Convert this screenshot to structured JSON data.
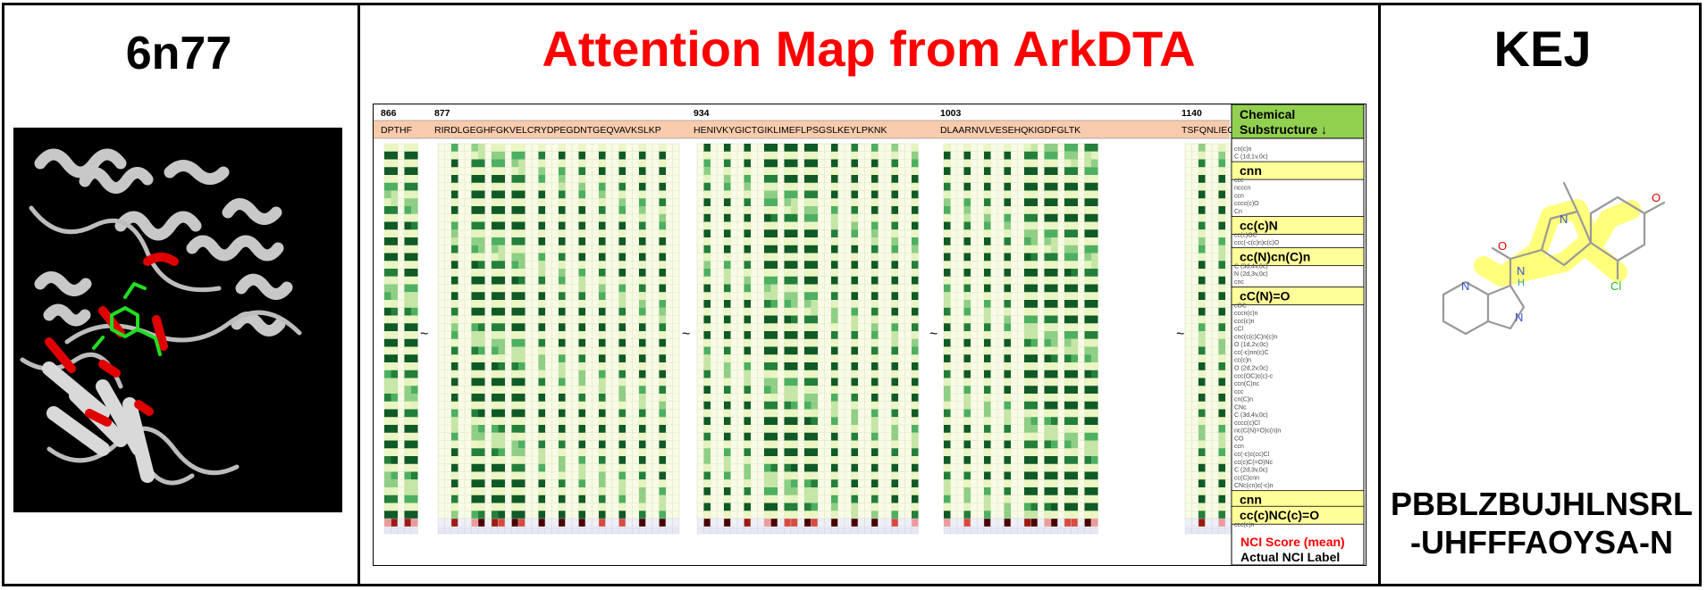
{
  "panels": {
    "protein": {
      "pdb_id": "6n77"
    },
    "main": {
      "title": "Attention Map from ArkDTA"
    },
    "ligand": {
      "ligand_id": "KEJ",
      "inchikey_line1": "PBBLZBUJHLNSRL",
      "inchikey_line2": "-UHFFFAOYSA-N"
    }
  },
  "attention_map": {
    "segments": [
      {
        "start": "866",
        "sequence": "DPTHF"
      },
      {
        "start": "877",
        "sequence": "RIRDLGEGHFGKVELCRYDPEGDNTGEQVAVKSLKP"
      },
      {
        "start": "934",
        "sequence": "HENIVKYGICTGIKLIMEFLPSGSLKEYLPKNK"
      },
      {
        "start": "1003",
        "sequence": "DLAARNVLVESEHQKIGDFGLTK"
      },
      {
        "start": "1140",
        "sequence": "TSFQNLIEGFEALLK"
      }
    ],
    "gap_symbol": "~",
    "header": {
      "line1": "Chemical",
      "line2": "Substructure ↓"
    },
    "substructures": [
      "cn(c)n",
      "C (1d,1v,0c)",
      "ccnn(c)c",
      "cnn",
      "ccc",
      "ncccn",
      "ccn",
      "cccc(c)O",
      "Cn",
      "N (1d,2v,0c)",
      "cc(c)N",
      "cc(c)OC",
      "ccc(-c(c)n)c(c)O",
      "cccc(c)Cl",
      "cc(N)cn(C)n",
      "C (3d,4v,0c)",
      "N (2d,3v,0c)",
      "cnc",
      "ccc(c)",
      "cC(N)=O",
      "cOC",
      "cccn(c)n",
      "ccc(c)n",
      "cCl",
      "cnc(c(c)C)n(c)n",
      "O (1d,2v,0c)",
      "cc(-c)nn(c)C",
      "cc(c)n",
      "O (2d,2v,0c)",
      "ccc(OC)c(c)-c",
      "ccn(C)nc",
      "ccc",
      "cn(C)n",
      "CNc",
      "C (3d,4v,0c)",
      "cccc(c)Cl",
      "nc(C(N)=O)c(n)n",
      "CO",
      "ccn",
      "cc(-c)c(cc)Cl",
      "cc(c)C(=O)Nc",
      "C (2d,3v,0c)",
      "cc(C)cnn",
      "CNc(cn)c(-c)n",
      "ccc",
      "cnn",
      "ccc(c)(c)n",
      "cc(c)NC(c)=O",
      "ccc(c)n"
    ],
    "highlighted": [
      "cc(c)N",
      "cc(N)cn(C)n",
      "cC(N)=O",
      "cnn",
      "cc(c)NC(c)=O"
    ],
    "legend": {
      "nci_score": "NCI Score (mean)",
      "nci_label": "Actual NCI Label"
    },
    "colors": {
      "header_bg": "#f8cbad",
      "subs_header_bg": "#92d050",
      "highlight_bg": "#ffff99",
      "score_text": "#ff0000"
    }
  }
}
